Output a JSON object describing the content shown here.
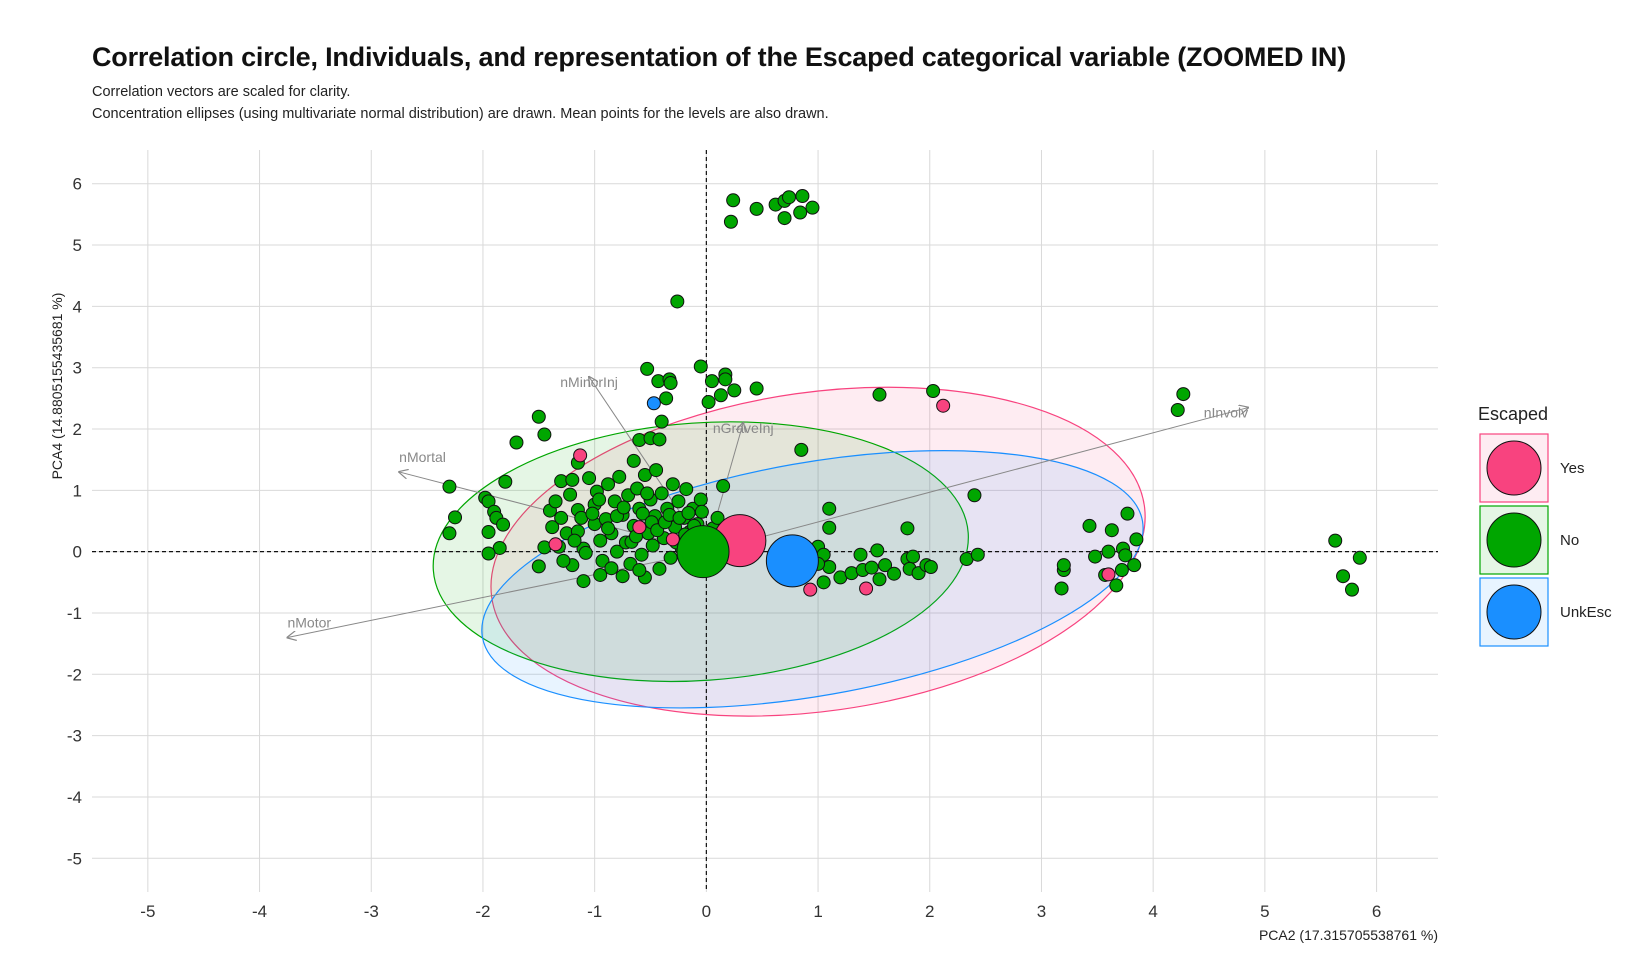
{
  "title": "Correlation circle, Individuals, and representation of the Escaped categorical variable (ZOOMED IN)",
  "subtitle_lines": [
    "Correlation vectors are scaled for clarity.",
    "Concentration ellipses (using multivariate normal distribution) are drawn. Mean points for the levels are also drawn."
  ],
  "chart_data": {
    "type": "scatter",
    "xlabel": "PCA2 (17.315705538761 %)",
    "ylabel": "PCA4 (14.8805155435681 %)",
    "xlim": [
      -5.5,
      6.55
    ],
    "ylim": [
      -5.55,
      6.55
    ],
    "x_ticks": [
      -5,
      -4,
      -3,
      -2,
      -1,
      0,
      1,
      2,
      3,
      4,
      5,
      6
    ],
    "y_ticks": [
      -5,
      -4,
      -3,
      -2,
      -1,
      0,
      1,
      2,
      3,
      4,
      5,
      6
    ],
    "grid": true,
    "reference_lines": {
      "x": 0,
      "y": 0,
      "style": "dashed"
    },
    "legend": {
      "title": "Escaped",
      "position": "right",
      "entries": [
        {
          "label": "Yes",
          "color": "#F8437F"
        },
        {
          "label": "No",
          "color": "#00A600"
        },
        {
          "label": "UnkEsc",
          "color": "#1A8FFF"
        }
      ]
    },
    "vectors": [
      {
        "label": "nInvolv",
        "x": 4.85,
        "y": 2.35
      },
      {
        "label": "nMinorInj",
        "x": -1.05,
        "y": 2.85
      },
      {
        "label": "nGraveInj",
        "x": 0.33,
        "y": 2.1
      },
      {
        "label": "nMortal",
        "x": -2.75,
        "y": 1.3
      },
      {
        "label": "nMotor",
        "x": -3.75,
        "y": -1.4
      }
    ],
    "ellipses": [
      {
        "group": "Yes",
        "cx": 1.0,
        "cy": 0.0,
        "rx": 2.95,
        "ry": 2.6,
        "angle": -8,
        "color": "#F8437F"
      },
      {
        "group": "No",
        "cx": -0.05,
        "cy": 0.0,
        "rx": 2.4,
        "ry": 2.1,
        "angle": -4,
        "color": "#00A600"
      },
      {
        "group": "UnkEsc",
        "cx": 0.95,
        "cy": -0.45,
        "rx": 3.0,
        "ry": 1.9,
        "angle": -10,
        "color": "#1A8FFF"
      }
    ],
    "means": [
      {
        "group": "Yes",
        "x": 0.3,
        "y": 0.18
      },
      {
        "group": "No",
        "x": -0.03,
        "y": 0.0
      },
      {
        "group": "UnkEsc",
        "x": 0.77,
        "y": -0.15
      }
    ],
    "series": [
      {
        "name": "Yes",
        "points": [
          [
            2.12,
            2.38
          ],
          [
            -1.13,
            1.57
          ],
          [
            -1.35,
            0.12
          ],
          [
            0.93,
            -0.62
          ],
          [
            1.43,
            -0.6
          ],
          [
            3.6,
            -0.37
          ],
          [
            -0.3,
            0.2
          ],
          [
            -0.6,
            0.4
          ]
        ]
      },
      {
        "name": "UnkEsc",
        "points": [
          [
            -0.47,
            2.42
          ]
        ]
      },
      {
        "name": "No",
        "points": [
          [
            0.24,
            5.73
          ],
          [
            0.22,
            5.38
          ],
          [
            0.45,
            5.59
          ],
          [
            0.62,
            5.66
          ],
          [
            0.7,
            5.72
          ],
          [
            0.74,
            5.78
          ],
          [
            0.86,
            5.8
          ],
          [
            0.95,
            5.61
          ],
          [
            0.84,
            5.53
          ],
          [
            0.7,
            5.44
          ],
          [
            -0.26,
            4.08
          ],
          [
            -0.53,
            2.98
          ],
          [
            -0.43,
            2.78
          ],
          [
            -0.33,
            2.81
          ],
          [
            -0.32,
            2.75
          ],
          [
            -0.36,
            2.5
          ],
          [
            -0.05,
            3.02
          ],
          [
            0.05,
            2.78
          ],
          [
            0.17,
            2.89
          ],
          [
            0.17,
            2.81
          ],
          [
            0.25,
            2.63
          ],
          [
            0.13,
            2.55
          ],
          [
            0.45,
            2.66
          ],
          [
            0.02,
            2.44
          ],
          [
            -0.4,
            2.12
          ],
          [
            1.55,
            2.56
          ],
          [
            2.03,
            2.62
          ],
          [
            4.27,
            2.57
          ],
          [
            4.22,
            2.31
          ],
          [
            -1.5,
            2.2
          ],
          [
            -1.45,
            1.91
          ],
          [
            -1.7,
            1.78
          ],
          [
            -0.6,
            1.82
          ],
          [
            -0.5,
            1.85
          ],
          [
            -0.42,
            1.83
          ],
          [
            0.85,
            1.66
          ],
          [
            -0.65,
            1.48
          ],
          [
            -1.15,
            1.45
          ],
          [
            -2.3,
            1.06
          ],
          [
            -2.25,
            0.56
          ],
          [
            -2.3,
            0.3
          ],
          [
            -1.98,
            0.88
          ],
          [
            -1.95,
            0.82
          ],
          [
            -1.9,
            0.65
          ],
          [
            -1.88,
            0.55
          ],
          [
            -1.95,
            0.32
          ],
          [
            -1.82,
            0.44
          ],
          [
            -1.8,
            1.14
          ],
          [
            -1.85,
            0.06
          ],
          [
            -1.95,
            -0.03
          ],
          [
            -1.45,
            0.07
          ],
          [
            -1.5,
            -0.24
          ],
          [
            -1.4,
            0.67
          ],
          [
            -1.38,
            0.4
          ],
          [
            -1.35,
            0.82
          ],
          [
            -1.3,
            1.15
          ],
          [
            -1.3,
            0.55
          ],
          [
            -1.25,
            0.3
          ],
          [
            -1.22,
            0.93
          ],
          [
            -1.2,
            1.17
          ],
          [
            -1.15,
            0.68
          ],
          [
            -1.15,
            0.33
          ],
          [
            -1.1,
            0.05
          ],
          [
            -1.05,
            1.2
          ],
          [
            -1.08,
            -0.02
          ],
          [
            -1.0,
            0.45
          ],
          [
            -1.0,
            0.77
          ],
          [
            -0.98,
            0.98
          ],
          [
            -0.95,
            0.18
          ],
          [
            -0.93,
            -0.15
          ],
          [
            -0.9,
            0.53
          ],
          [
            -0.88,
            1.1
          ],
          [
            -0.85,
            0.3
          ],
          [
            -0.82,
            0.82
          ],
          [
            -0.8,
            0.0
          ],
          [
            -0.78,
            1.22
          ],
          [
            -0.75,
            0.6
          ],
          [
            -0.72,
            0.15
          ],
          [
            -0.7,
            0.92
          ],
          [
            -0.68,
            -0.2
          ],
          [
            -0.65,
            0.42
          ],
          [
            -0.62,
            1.03
          ],
          [
            -0.6,
            0.7
          ],
          [
            -0.58,
            -0.05
          ],
          [
            -0.55,
            1.25
          ],
          [
            -0.52,
            0.3
          ],
          [
            -0.5,
            0.85
          ],
          [
            -0.48,
            0.1
          ],
          [
            -0.46,
            0.58
          ],
          [
            -0.45,
            1.33
          ],
          [
            -0.42,
            -0.28
          ],
          [
            -0.4,
            0.95
          ],
          [
            -0.38,
            0.22
          ],
          [
            -0.35,
            0.7
          ],
          [
            -0.32,
            -0.1
          ],
          [
            -0.3,
            1.1
          ],
          [
            -0.28,
            0.4
          ],
          [
            -0.25,
            0.82
          ],
          [
            -0.22,
            0.05
          ],
          [
            -0.2,
            0.55
          ],
          [
            -0.18,
            1.02
          ],
          [
            -0.15,
            0.32
          ],
          [
            -0.12,
            0.7
          ],
          [
            -0.1,
            -0.15
          ],
          [
            -0.08,
            0.45
          ],
          [
            -0.05,
            0.85
          ],
          [
            -0.02,
            0.22
          ],
          [
            0.15,
            1.07
          ],
          [
            -1.1,
            -0.48
          ],
          [
            -0.95,
            -0.38
          ],
          [
            -1.2,
            -0.22
          ],
          [
            -0.75,
            -0.4
          ],
          [
            -0.55,
            -0.42
          ],
          [
            -0.85,
            -0.27
          ],
          [
            -0.6,
            -0.3
          ],
          [
            -1.32,
            0.08
          ],
          [
            -1.28,
            -0.15
          ],
          [
            -1.18,
            0.18
          ],
          [
            -1.12,
            0.55
          ],
          [
            -1.02,
            0.62
          ],
          [
            -0.96,
            0.85
          ],
          [
            -0.88,
            0.38
          ],
          [
            -0.8,
            0.58
          ],
          [
            -0.74,
            0.72
          ],
          [
            -0.67,
            0.16
          ],
          [
            -0.63,
            0.25
          ],
          [
            -0.57,
            0.62
          ],
          [
            -0.53,
            0.95
          ],
          [
            -0.49,
            0.48
          ],
          [
            -0.44,
            0.35
          ],
          [
            -0.37,
            0.48
          ],
          [
            -0.33,
            0.6
          ],
          [
            -0.27,
            0.15
          ],
          [
            -0.24,
            0.55
          ],
          [
            -0.19,
            0.28
          ],
          [
            -0.16,
            0.63
          ],
          [
            -0.11,
            0.42
          ],
          [
            -0.07,
            0.2
          ],
          [
            -0.04,
            0.65
          ],
          [
            0.02,
            0.12
          ],
          [
            0.06,
            0.38
          ],
          [
            0.1,
            0.55
          ],
          [
            1.1,
            0.39
          ],
          [
            1.1,
            0.7
          ],
          [
            1.0,
            0.08
          ],
          [
            1.05,
            -0.05
          ],
          [
            1.1,
            -0.25
          ],
          [
            1.0,
            -0.2
          ],
          [
            1.05,
            -0.5
          ],
          [
            1.2,
            -0.42
          ],
          [
            1.3,
            -0.35
          ],
          [
            1.38,
            -0.05
          ],
          [
            1.4,
            -0.3
          ],
          [
            1.48,
            -0.26
          ],
          [
            1.53,
            0.02
          ],
          [
            1.55,
            -0.45
          ],
          [
            1.6,
            -0.22
          ],
          [
            1.68,
            -0.36
          ],
          [
            1.8,
            0.38
          ],
          [
            1.8,
            -0.12
          ],
          [
            1.85,
            -0.08
          ],
          [
            1.82,
            -0.28
          ],
          [
            1.9,
            -0.35
          ],
          [
            1.97,
            -0.22
          ],
          [
            2.01,
            -0.25
          ],
          [
            2.33,
            -0.12
          ],
          [
            2.43,
            -0.05
          ],
          [
            2.4,
            0.92
          ],
          [
            3.18,
            -0.6
          ],
          [
            3.2,
            -0.3
          ],
          [
            3.2,
            -0.22
          ],
          [
            3.43,
            0.42
          ],
          [
            3.48,
            -0.08
          ],
          [
            3.57,
            -0.38
          ],
          [
            3.6,
            0.0
          ],
          [
            3.63,
            0.35
          ],
          [
            3.67,
            -0.55
          ],
          [
            3.72,
            -0.3
          ],
          [
            3.73,
            0.05
          ],
          [
            3.75,
            -0.06
          ],
          [
            3.77,
            0.62
          ],
          [
            3.83,
            -0.22
          ],
          [
            3.85,
            0.2
          ],
          [
            5.63,
            0.18
          ],
          [
            5.7,
            -0.4
          ],
          [
            5.78,
            -0.62
          ],
          [
            5.85,
            -0.1
          ]
        ]
      }
    ]
  }
}
